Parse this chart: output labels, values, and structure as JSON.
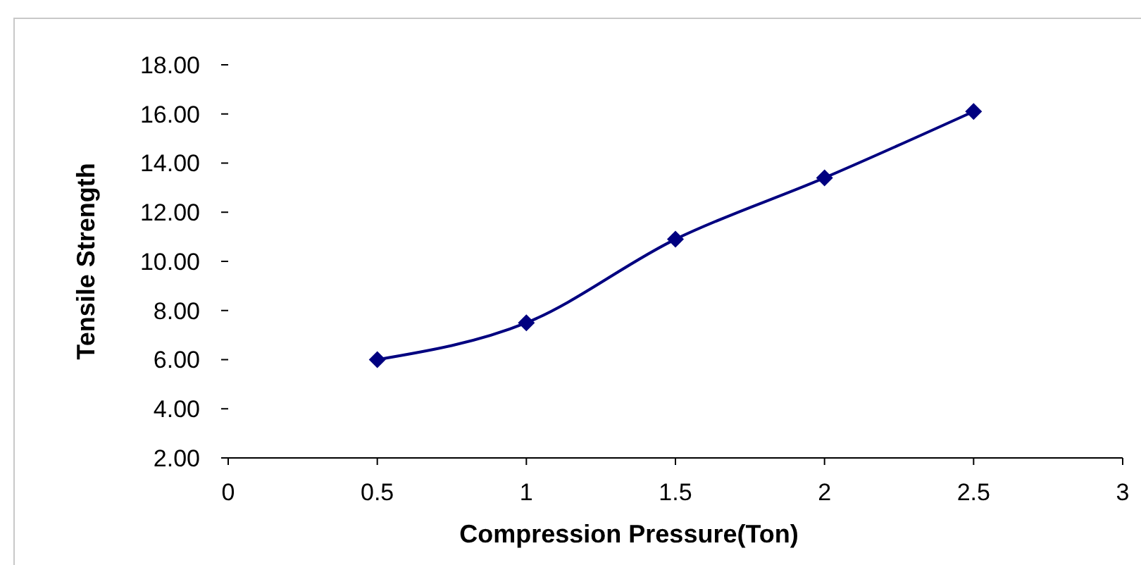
{
  "chart_data": {
    "type": "line",
    "xlabel": "Compression Pressure(Ton)",
    "ylabel": "Tensile Strength",
    "x": [
      0.5,
      1,
      1.5,
      2,
      2.5
    ],
    "series": [
      {
        "color": "#000080",
        "values": [
          6.0,
          7.5,
          10.9,
          13.4,
          16.1
        ]
      }
    ],
    "xlim": [
      0,
      3
    ],
    "xticks": [
      0,
      0.5,
      1,
      1.5,
      2,
      2.5,
      3
    ],
    "ylim": [
      2,
      18
    ],
    "yticks": [
      {
        "value": 2,
        "label": "2.00"
      },
      {
        "value": 4,
        "label": "4.00"
      },
      {
        "value": 6,
        "label": "6.00"
      },
      {
        "value": 8,
        "label": "8.00"
      },
      {
        "value": 10,
        "label": "10.00"
      },
      {
        "value": 12,
        "label": "12.00"
      },
      {
        "value": 14,
        "label": "14.00"
      },
      {
        "value": 16,
        "label": "16.00"
      },
      {
        "value": 18,
        "label": "18.00"
      }
    ],
    "marker": "diamond",
    "line_style": "solid",
    "grid": false
  }
}
